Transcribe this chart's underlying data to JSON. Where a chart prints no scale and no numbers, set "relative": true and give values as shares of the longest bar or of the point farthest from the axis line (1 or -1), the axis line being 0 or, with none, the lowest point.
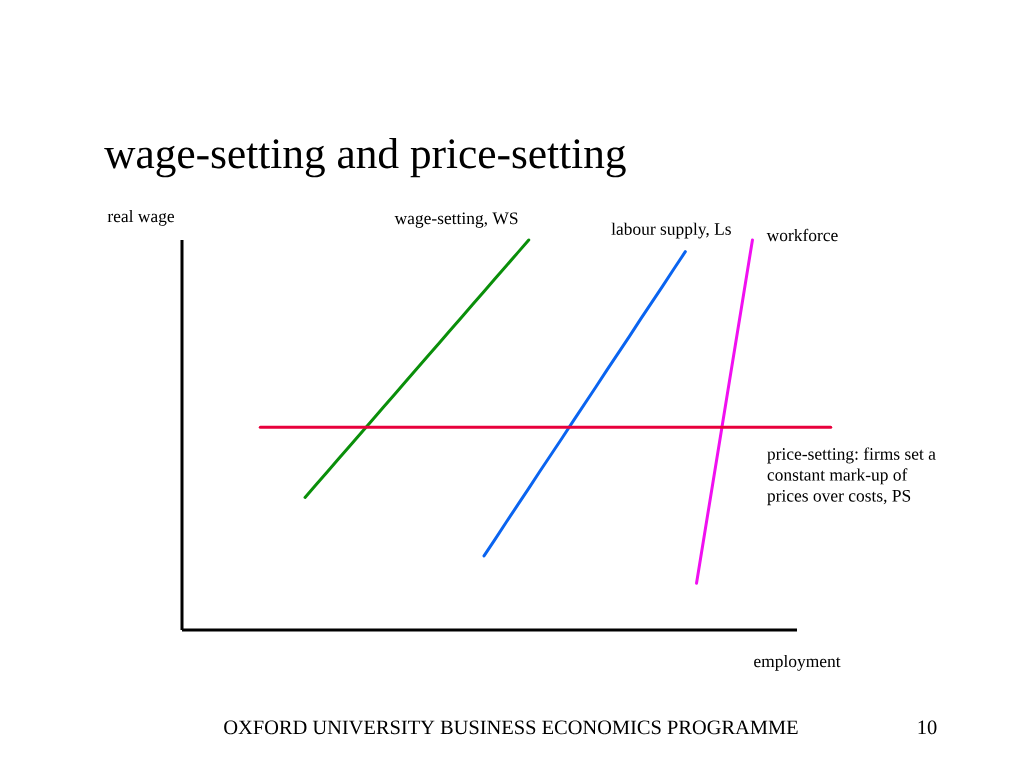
{
  "chart_data": {
    "type": "line",
    "relative": true,
    "title": "wage-setting and price-setting",
    "xlabel": "employment",
    "ylabel": "real wage",
    "categories": [
      null,
      null,
      null,
      null,
      null,
      null,
      null,
      null,
      null,
      null,
      null,
      null,
      null,
      null,
      null,
      null,
      null,
      null,
      null,
      null,
      null,
      null,
      null,
      null,
      null,
      null,
      null,
      null,
      null,
      null,
      null,
      null,
      null,
      null,
      null,
      null,
      null,
      null,
      null,
      null,
      null,
      null,
      null,
      null,
      null,
      null,
      null,
      null,
      null,
      null,
      null,
      null,
      null,
      null,
      null,
      null,
      null,
      null,
      null
    ],
    "series": [
      {
        "name": "wage-setting, WS",
        "color": "#0a8f0a",
        "values": [
          null,
          null,
          null,
          null,
          null,
          null,
          null,
          null,
          null,
          null,
          null,
          0.34,
          0.373,
          0.406,
          0.439,
          0.472,
          0.505,
          0.538,
          0.571,
          0.604,
          0.637,
          0.67,
          0.703,
          0.736,
          0.769,
          0.802,
          0.835,
          0.868,
          0.901,
          0.934,
          0.967,
          1.0,
          null,
          null,
          null,
          null,
          null,
          null,
          null,
          null,
          null,
          null,
          null,
          null,
          null,
          null,
          null,
          null,
          null,
          null,
          null,
          null,
          null,
          null,
          null,
          null,
          null,
          null,
          null
        ]
      },
      {
        "name": "labour supply, Ls",
        "color": "#0a64f0",
        "values": [
          null,
          null,
          null,
          null,
          null,
          null,
          null,
          null,
          null,
          null,
          null,
          null,
          null,
          null,
          null,
          null,
          null,
          null,
          null,
          null,
          null,
          null,
          null,
          null,
          null,
          null,
          null,
          0.19,
          0.233,
          0.277,
          0.32,
          0.363,
          0.407,
          0.45,
          0.493,
          0.537,
          0.58,
          0.623,
          0.667,
          0.71,
          0.753,
          0.797,
          0.84,
          0.883,
          0.927,
          0.97,
          null,
          null,
          null,
          null,
          null,
          null,
          null,
          null,
          null,
          null,
          null,
          null,
          null
        ]
      },
      {
        "name": "workforce",
        "color": "#f010f0",
        "values": [
          null,
          null,
          null,
          null,
          null,
          null,
          null,
          null,
          null,
          null,
          null,
          null,
          null,
          null,
          null,
          null,
          null,
          null,
          null,
          null,
          null,
          null,
          null,
          null,
          null,
          null,
          null,
          null,
          null,
          null,
          null,
          null,
          null,
          null,
          null,
          null,
          null,
          null,
          null,
          null,
          null,
          null,
          null,
          null,
          null,
          null,
          0.12,
          0.296,
          0.472,
          0.648,
          0.824,
          1.0,
          null,
          null,
          null,
          null,
          null,
          null,
          null
        ]
      },
      {
        "name": "price-setting: firms set a constant mark-up of prices over costs, PS",
        "color": "#e8003c",
        "values": [
          null,
          null,
          null,
          null,
          null,
          null,
          null,
          0.52,
          0.52,
          0.52,
          0.52,
          0.52,
          0.52,
          0.52,
          0.52,
          0.52,
          0.52,
          0.52,
          0.52,
          0.52,
          0.52,
          0.52,
          0.52,
          0.52,
          0.52,
          0.52,
          0.52,
          0.52,
          0.52,
          0.52,
          0.52,
          0.52,
          0.52,
          0.52,
          0.52,
          0.52,
          0.52,
          0.52,
          0.52,
          0.52,
          0.52,
          0.52,
          0.52,
          0.52,
          0.52,
          0.52,
          0.52,
          0.52,
          0.52,
          0.52,
          0.52,
          0.52,
          0.52,
          0.52,
          0.52,
          0.52,
          0.52,
          0.52,
          0.52
        ]
      }
    ],
    "annotations": [
      "OXFORD UNIVERSITY BUSINESS ECONOMICS PROGRAMME",
      "10"
    ]
  }
}
